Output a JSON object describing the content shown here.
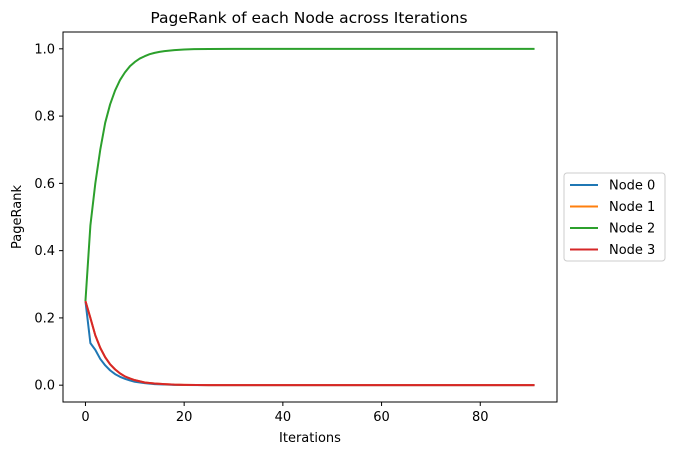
{
  "chart_data": {
    "type": "line",
    "title": "PageRank of each Node across Iterations",
    "xlabel": "Iterations",
    "ylabel": "PageRank",
    "xlim": [
      -4.55,
      95.55
    ],
    "ylim": [
      -0.05,
      1.05
    ],
    "xticks": [
      0,
      20,
      40,
      60,
      80
    ],
    "xtick_labels": [
      "0",
      "20",
      "40",
      "60",
      "80"
    ],
    "yticks": [
      0.0,
      0.2,
      0.4,
      0.6,
      0.8,
      1.0
    ],
    "ytick_labels": [
      "0.0",
      "0.2",
      "0.4",
      "0.6",
      "0.8",
      "1.0"
    ],
    "grid": false,
    "legend_position": "outside-right",
    "series": [
      {
        "name": "Node 0",
        "color": "#1f77b4",
        "x": [
          0,
          1,
          2,
          3,
          4,
          5,
          6,
          7,
          8,
          9,
          10,
          12,
          14,
          16,
          18,
          20,
          25,
          30,
          40,
          60,
          91
        ],
        "y": [
          0.25,
          0.125,
          0.105,
          0.078,
          0.059,
          0.044,
          0.033,
          0.025,
          0.019,
          0.014,
          0.01,
          0.006,
          0.003,
          0.002,
          0.001,
          0.0006,
          0.0002,
          0.0,
          0.0,
          0.0,
          0.0
        ]
      },
      {
        "name": "Node 1",
        "color": "#ff7f0e",
        "x": [
          0,
          1,
          2,
          3,
          4,
          5,
          6,
          7,
          8,
          9,
          10,
          12,
          14,
          16,
          18,
          20,
          25,
          30,
          40,
          60,
          91
        ],
        "y": [
          0.25,
          0.2,
          0.148,
          0.111,
          0.083,
          0.062,
          0.047,
          0.035,
          0.026,
          0.02,
          0.015,
          0.008,
          0.005,
          0.003,
          0.0015,
          0.0008,
          0.0002,
          0.0,
          0.0,
          0.0,
          0.0
        ]
      },
      {
        "name": "Node 2",
        "color": "#2ca02c",
        "x": [
          0,
          1,
          2,
          3,
          4,
          5,
          6,
          7,
          8,
          9,
          10,
          11,
          12,
          13,
          14,
          15,
          16,
          18,
          20,
          22,
          25,
          30,
          40,
          60,
          91
        ],
        "y": [
          0.25,
          0.475,
          0.6,
          0.7,
          0.78,
          0.835,
          0.876,
          0.907,
          0.93,
          0.948,
          0.961,
          0.971,
          0.978,
          0.984,
          0.988,
          0.991,
          0.993,
          0.996,
          0.998,
          0.999,
          0.9995,
          1.0,
          1.0,
          1.0,
          1.0
        ]
      },
      {
        "name": "Node 3",
        "color": "#d62728",
        "x": [
          0,
          1,
          2,
          3,
          4,
          5,
          6,
          7,
          8,
          9,
          10,
          12,
          14,
          16,
          18,
          20,
          25,
          30,
          40,
          60,
          91
        ],
        "y": [
          0.25,
          0.2,
          0.148,
          0.111,
          0.083,
          0.062,
          0.047,
          0.035,
          0.026,
          0.02,
          0.015,
          0.008,
          0.005,
          0.003,
          0.0015,
          0.0008,
          0.0002,
          0.0,
          0.0,
          0.0,
          0.0
        ]
      }
    ]
  }
}
